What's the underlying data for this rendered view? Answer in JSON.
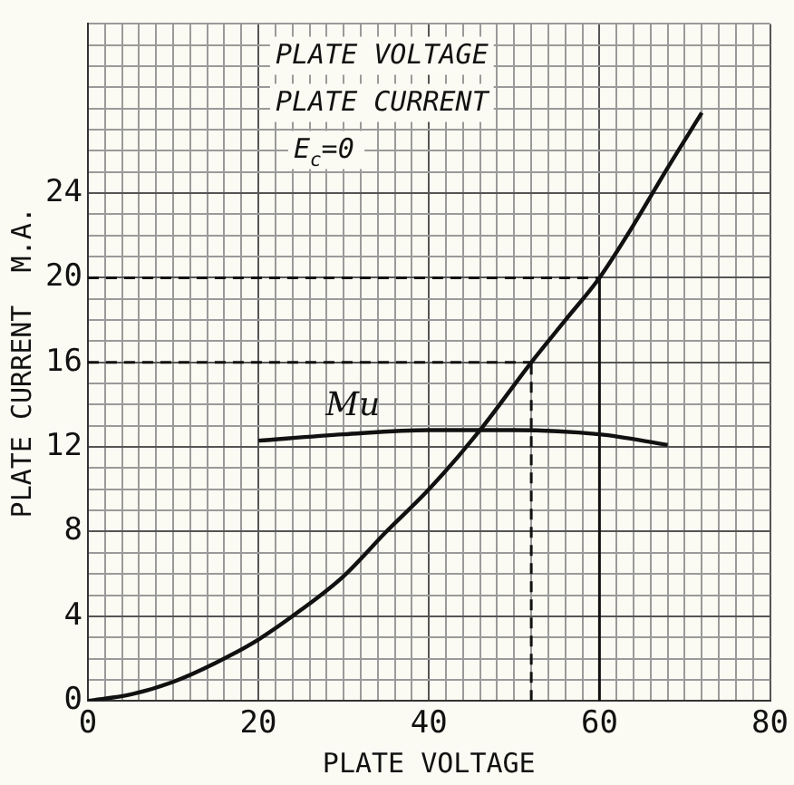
{
  "chart_data": {
    "type": "line",
    "xlabel": "PLATE VOLTAGE",
    "ylabel": "PLATE CURRENT  M.A.",
    "annotations": [
      "PLATE VOLTAGE",
      "PLATE CURRENT",
      "E$_{c}$=0"
    ],
    "series": [
      {
        "color": "#111111",
        "x": [
          0,
          5,
          10,
          15,
          20,
          25,
          30,
          35,
          40,
          46,
          52,
          56,
          60,
          64,
          68,
          72
        ],
        "values": [
          0,
          0.3,
          0.9,
          1.8,
          2.9,
          4.3,
          5.9,
          8.0,
          10.0,
          12.8,
          16,
          18,
          20,
          22.5,
          25.2,
          27.8
        ]
      },
      {
        "name": "Mu",
        "color": "#111111",
        "x": [
          20,
          30,
          40,
          50,
          60,
          68
        ],
        "values": [
          12.3,
          12.6,
          12.8,
          12.8,
          12.6,
          12.1
        ]
      }
    ],
    "ref_lines": [
      {
        "axis": "y",
        "value": 20,
        "line_style": "dashed"
      },
      {
        "axis": "y",
        "value": 16,
        "line_style": "dashed"
      },
      {
        "axis": "x",
        "value": 52,
        "line_style": "dashed"
      },
      {
        "axis": "x",
        "value": 60,
        "line_style": "solid"
      }
    ],
    "xlim": [
      0,
      80
    ],
    "ylim": [
      0,
      32
    ],
    "xticks": [
      0,
      {
        "value": 2,
        "label": null
      },
      {
        "value": 4,
        "label": null
      },
      {
        "value": 6,
        "label": null
      },
      {
        "value": 8,
        "label": null
      },
      {
        "value": 10,
        "label": null
      },
      {
        "value": 12,
        "label": null
      },
      {
        "value": 14,
        "label": null
      },
      {
        "value": 16,
        "label": null
      },
      {
        "value": 18,
        "label": null
      },
      20,
      {
        "value": 22,
        "label": null
      },
      {
        "value": 24,
        "label": null
      },
      {
        "value": 26,
        "label": null
      },
      {
        "value": 28,
        "label": null
      },
      {
        "value": 30,
        "label": null
      },
      {
        "value": 32,
        "label": null
      },
      {
        "value": 34,
        "label": null
      },
      {
        "value": 36,
        "label": null
      },
      {
        "value": 38,
        "label": null
      },
      40,
      {
        "value": 42,
        "label": null
      },
      {
        "value": 44,
        "label": null
      },
      {
        "value": 46,
        "label": null
      },
      {
        "value": 48,
        "label": null
      },
      {
        "value": 50,
        "label": null
      },
      {
        "value": 52,
        "label": null
      },
      {
        "value": 54,
        "label": null
      },
      {
        "value": 56,
        "label": null
      },
      {
        "value": 58,
        "label": null
      },
      60,
      {
        "value": 62,
        "label": null
      },
      {
        "value": 64,
        "label": null
      },
      {
        "value": 66,
        "label": null
      },
      {
        "value": 68,
        "label": null
      },
      {
        "value": 70,
        "label": null
      },
      {
        "value": 72,
        "label": null
      },
      {
        "value": 74,
        "label": null
      },
      {
        "value": 76,
        "label": null
      },
      {
        "value": 78,
        "label": null
      },
      80
    ],
    "yticks": [
      0,
      {
        "value": 1,
        "label": null
      },
      {
        "value": 2,
        "label": null
      },
      {
        "value": 3,
        "label": null
      },
      4,
      {
        "value": 5,
        "label": null
      },
      {
        "value": 6,
        "label": null
      },
      {
        "value": 7,
        "label": null
      },
      8,
      {
        "value": 9,
        "label": null
      },
      {
        "value": 10,
        "label": null
      },
      {
        "value": 11,
        "label": null
      },
      12,
      {
        "value": 13,
        "label": null
      },
      {
        "value": 14,
        "label": null
      },
      {
        "value": 15,
        "label": null
      },
      16,
      {
        "value": 17,
        "label": null
      },
      {
        "value": 18,
        "label": null
      },
      {
        "value": 19,
        "label": null
      },
      20,
      {
        "value": 21,
        "label": null
      },
      {
        "value": 22,
        "label": null
      },
      {
        "value": 23,
        "label": null
      },
      24,
      {
        "value": 25,
        "label": null
      },
      {
        "value": 26,
        "label": null
      },
      {
        "value": 27,
        "label": null
      },
      {
        "value": 28,
        "label": null
      },
      {
        "value": 29,
        "label": null
      },
      {
        "value": 30,
        "label": null
      },
      {
        "value": 31,
        "label": null
      },
      {
        "value": 32,
        "label": null
      }
    ],
    "grid": true,
    "legend": false,
    "marker": "none",
    "line_style": "solid"
  }
}
